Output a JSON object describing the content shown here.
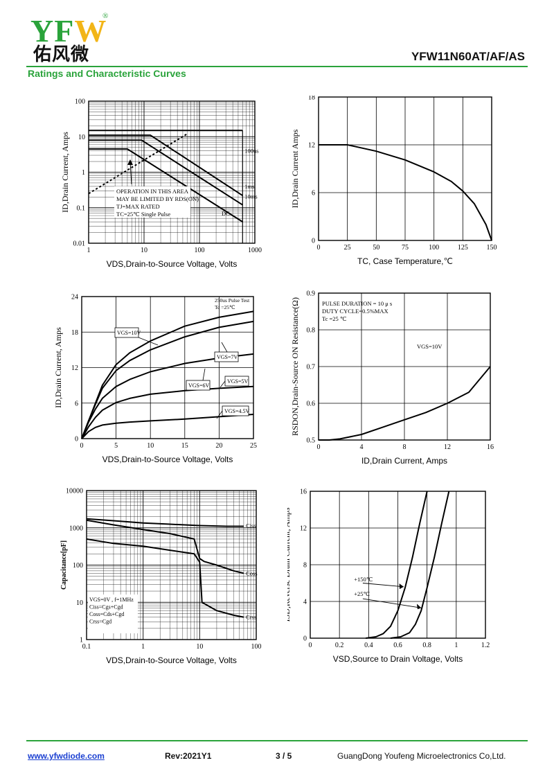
{
  "header": {
    "logo_text": "YFW",
    "logo_cn": "佑风微",
    "registered": "®",
    "part_number": "YFW11N60AT/AF/AS",
    "section_title": "Ratings and Characteristic Curves"
  },
  "footer": {
    "url": "www.yfwdiode.com",
    "rev": "Rev:2021Y1",
    "page": "3 / 5",
    "company": "GuangDong Youfeng Microelectronics Co,Ltd."
  },
  "colors": {
    "green": "#2aa33b",
    "logo_yellow": "#f2b517",
    "logo_green": "#2aa33b",
    "link": "#1a3fd1"
  },
  "chart_data": [
    {
      "id": "soa",
      "type": "line",
      "xlabel": "VDS,Drain-to-Source Voltage, Volts",
      "ylabel": "ID,Drain Current, Amps",
      "xscale": "log",
      "yscale": "log",
      "xlim": [
        1,
        1000
      ],
      "ylim": [
        0.01,
        100
      ],
      "xticks": [
        1,
        10,
        100,
        1000
      ],
      "xticklabels": [
        "1",
        "10",
        "100",
        "1000"
      ],
      "yticks": [
        0.01,
        0.1,
        1,
        10,
        100
      ],
      "yticklabels": [
        "0.01",
        "0.1",
        "1",
        "10",
        "100"
      ],
      "series": [
        {
          "name": "100us",
          "x": [
            1,
            10,
            100,
            600
          ],
          "y": [
            15,
            15,
            15,
            15
          ]
        },
        {
          "name": "1ms",
          "x": [
            1,
            13,
            600
          ],
          "y": [
            11,
            11,
            0.22
          ]
        },
        {
          "name": "10ms",
          "x": [
            1,
            9,
            600
          ],
          "y": [
            8,
            8,
            0.12
          ]
        },
        {
          "name": "DC",
          "x": [
            1,
            5,
            600
          ],
          "y": [
            4.5,
            4.5,
            0.04
          ]
        },
        {
          "name": "",
          "x": [
            1,
            60
          ],
          "y": [
            0.25,
            12
          ]
        },
        {
          "name": "",
          "x": [
            600,
            600
          ],
          "y": [
            0.01,
            15
          ]
        }
      ],
      "annotation": [
        "OPERATION IN THIS AREA",
        "MAY BE LIMITED BY RDS(ON)",
        "TJ=MAX RATED",
        "TC=25℃  Single Pulse"
      ],
      "labels": [
        {
          "text": "100us",
          "x": 600,
          "y": 3.5
        },
        {
          "text": "1ms",
          "x": 600,
          "y": 0.35
        },
        {
          "text": "10ms",
          "x": 600,
          "y": 0.18
        },
        {
          "text": "DC",
          "x": 230,
          "y": 0.06
        }
      ]
    },
    {
      "id": "id_vs_tc",
      "type": "line",
      "xlabel": "TC, Case Temperature,℃",
      "ylabel": "ID,Drain Current Amps",
      "xlim": [
        0,
        150
      ],
      "ylim": [
        0,
        18
      ],
      "xticks": [
        0,
        25,
        50,
        75,
        100,
        125,
        150
      ],
      "yticks": [
        0,
        6,
        12,
        18
      ],
      "series": [
        {
          "name": "",
          "x": [
            0,
            25,
            50,
            75,
            100,
            115,
            125,
            135,
            145,
            150
          ],
          "y": [
            12,
            12,
            11.2,
            10.1,
            8.6,
            7.4,
            6.2,
            4.6,
            2.0,
            0
          ]
        }
      ]
    },
    {
      "id": "output",
      "type": "line",
      "xlabel": "VDS,Drain-to-Source Voltage, Volts",
      "ylabel": "ID,Drain Current, Amps",
      "xlim": [
        0,
        25
      ],
      "ylim": [
        0,
        24
      ],
      "xticks": [
        0,
        5,
        10,
        15,
        20,
        25
      ],
      "yticks": [
        0,
        6,
        12,
        18,
        24
      ],
      "annotation": [
        "250us Pulse Test",
        "Tc =25℃"
      ],
      "series": [
        {
          "name": "VGS=10V",
          "x": [
            0,
            1,
            2,
            3,
            5,
            7,
            10,
            15,
            20,
            25
          ],
          "y": [
            0,
            3,
            6,
            9,
            12.5,
            14.5,
            16.5,
            19,
            20.5,
            21.5
          ]
        },
        {
          "name": "VGS=7V",
          "x": [
            0,
            1,
            2,
            3,
            5,
            7,
            10,
            15,
            20,
            25
          ],
          "y": [
            0,
            3,
            5.8,
            8.5,
            11.5,
            13.2,
            15,
            17.2,
            18.8,
            19.8
          ]
        },
        {
          "name": "VGS=6V",
          "x": [
            0,
            1,
            2,
            3,
            5,
            7,
            10,
            15,
            20,
            25
          ],
          "y": [
            0,
            2.8,
            5,
            6.8,
            8.8,
            10,
            11.3,
            12.7,
            13.6,
            14.3
          ]
        },
        {
          "name": "VGS=5V",
          "x": [
            0,
            1,
            2,
            3,
            5,
            7,
            10,
            15,
            20,
            25
          ],
          "y": [
            0,
            2,
            3.6,
            4.8,
            6.1,
            6.8,
            7.5,
            8.1,
            8.5,
            8.8
          ]
        },
        {
          "name": "VGS=4.5V",
          "x": [
            0,
            1,
            2,
            3,
            5,
            7,
            10,
            15,
            20,
            25
          ],
          "y": [
            0,
            1.2,
            1.9,
            2.3,
            2.6,
            2.8,
            3.0,
            3.3,
            3.7,
            4.1
          ]
        }
      ]
    },
    {
      "id": "rdson",
      "type": "line",
      "xlabel": "ID,Drain Current, Amps",
      "ylabel": "RSDON,Drain-Source ON Resistance(Ω)",
      "xlim": [
        0,
        16
      ],
      "ylim": [
        0.5,
        0.9
      ],
      "xticks": [
        0,
        4,
        8,
        12,
        16
      ],
      "yticks": [
        0.5,
        0.6,
        0.7,
        0.8,
        0.9
      ],
      "annotation": [
        "PULSE   DURATION = 10 μ s",
        "DUTY   CYCLE=0.5%MAX",
        "Tc =25  ℃"
      ],
      "label": "VGS=10V",
      "series": [
        {
          "name": "VGS=10V",
          "x": [
            0,
            1,
            2,
            4,
            6,
            8,
            10,
            12,
            14,
            16
          ],
          "y": [
            0.5,
            0.5,
            0.503,
            0.515,
            0.535,
            0.555,
            0.575,
            0.6,
            0.63,
            0.7
          ]
        }
      ]
    },
    {
      "id": "capacitance",
      "type": "line",
      "xlabel": "VDS,Drain-to-Source Voltage, Volts",
      "ylabel": "Capacitance[pF]",
      "xscale": "log",
      "yscale": "log",
      "xlim": [
        0.1,
        100
      ],
      "ylim": [
        1,
        10000
      ],
      "xticks": [
        0.1,
        1,
        10,
        100
      ],
      "xticklabels": [
        "0.1",
        "1",
        "10",
        "100"
      ],
      "yticks": [
        1,
        10,
        100,
        1000,
        10000
      ],
      "yticklabels": [
        "1",
        "10",
        "100",
        "1000",
        "10000"
      ],
      "annotation": [
        "VGS=0V , f=1MHz",
        "Ciss=Cgs+Cgd",
        "Coss=Cds+Cgd",
        "Crss=Cgd"
      ],
      "series": [
        {
          "name": "Ciss",
          "x": [
            0.1,
            0.3,
            1,
            3,
            10,
            30,
            60
          ],
          "y": [
            1750,
            1550,
            1350,
            1250,
            1150,
            1100,
            1100
          ]
        },
        {
          "name": "Coss",
          "x": [
            0.1,
            0.3,
            1,
            3,
            8,
            10,
            12,
            20,
            40,
            60
          ],
          "y": [
            1600,
            1200,
            900,
            700,
            500,
            150,
            125,
            100,
            70,
            60
          ]
        },
        {
          "name": "Crss",
          "x": [
            0.1,
            0.3,
            1,
            3,
            8,
            10,
            11,
            20,
            40,
            60
          ],
          "y": [
            500,
            380,
            320,
            250,
            200,
            120,
            10,
            6,
            4.5,
            4
          ]
        }
      ]
    },
    {
      "id": "body_diode",
      "type": "line",
      "xlabel": "VSD,Source to Drain Voltage, Volts",
      "ylabel": "ISD,Reverse Drain Current, Amps",
      "xlim": [
        0,
        1.2
      ],
      "ylim": [
        0,
        16
      ],
      "xticks": [
        0,
        0.2,
        0.4,
        0.6,
        0.8,
        1.0,
        1.2
      ],
      "xticklabels": [
        "0",
        "0.2",
        "0.4",
        "0.6",
        "0.8",
        "1",
        "1.2"
      ],
      "yticks": [
        0,
        4,
        8,
        12,
        16
      ],
      "series": [
        {
          "name": "+150℃",
          "x": [
            0.38,
            0.45,
            0.5,
            0.55,
            0.6,
            0.65,
            0.7,
            0.75,
            0.8
          ],
          "y": [
            0,
            0.15,
            0.5,
            1.3,
            3.0,
            5.5,
            8.8,
            12.5,
            16
          ]
        },
        {
          "name": "+25℃",
          "x": [
            0.55,
            0.62,
            0.68,
            0.72,
            0.76,
            0.8,
            0.85,
            0.9,
            0.95
          ],
          "y": [
            0,
            0.15,
            0.6,
            1.5,
            3.0,
            5.5,
            8.8,
            12.5,
            16
          ]
        }
      ]
    }
  ]
}
